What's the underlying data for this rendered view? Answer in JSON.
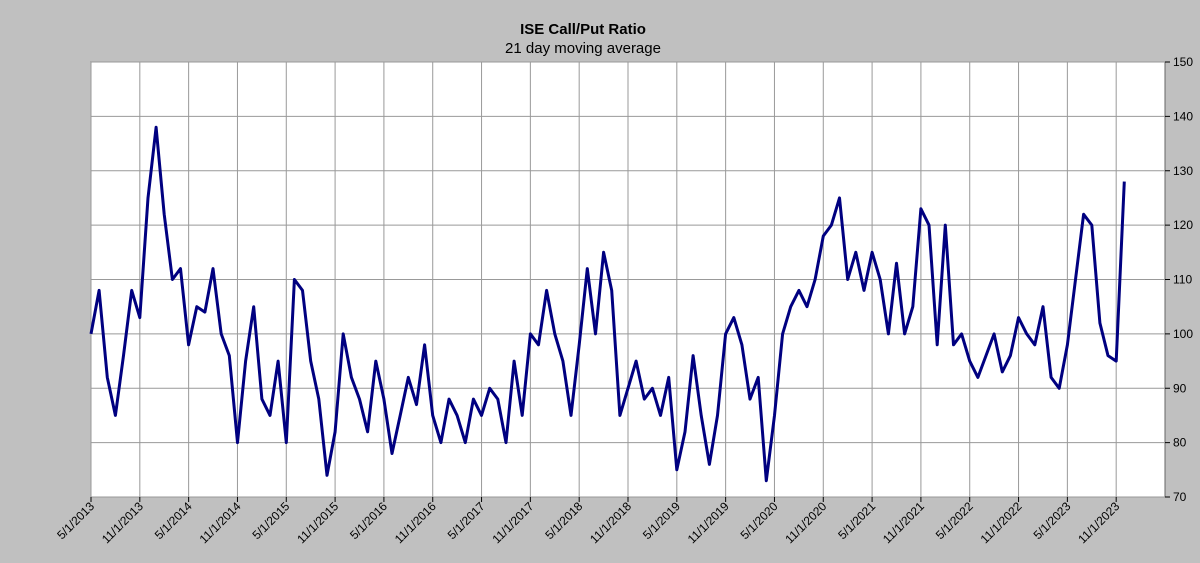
{
  "chart_data": {
    "type": "line",
    "title": "ISE  Call/Put Ratio",
    "subtitle": "21 day moving average",
    "x": [
      "5/1/2013",
      "6/1/2013",
      "7/1/2013",
      "8/1/2013",
      "9/1/2013",
      "10/1/2013",
      "11/1/2013",
      "12/1/2013",
      "1/1/2014",
      "2/1/2014",
      "3/1/2014",
      "4/1/2014",
      "5/1/2014",
      "6/1/2014",
      "7/1/2014",
      "8/1/2014",
      "9/1/2014",
      "10/1/2014",
      "11/1/2014",
      "12/1/2014",
      "1/1/2015",
      "2/1/2015",
      "3/1/2015",
      "4/1/2015",
      "5/1/2015",
      "6/1/2015",
      "7/1/2015",
      "8/1/2015",
      "9/1/2015",
      "10/1/2015",
      "11/1/2015",
      "12/1/2015",
      "1/1/2016",
      "2/1/2016",
      "3/1/2016",
      "4/1/2016",
      "5/1/2016",
      "6/1/2016",
      "7/1/2016",
      "8/1/2016",
      "9/1/2016",
      "10/1/2016",
      "11/1/2016",
      "12/1/2016",
      "1/1/2017",
      "2/1/2017",
      "3/1/2017",
      "4/1/2017",
      "5/1/2017",
      "6/1/2017",
      "7/1/2017",
      "8/1/2017",
      "9/1/2017",
      "10/1/2017",
      "11/1/2017",
      "12/1/2017",
      "1/1/2018",
      "2/1/2018",
      "3/1/2018",
      "4/1/2018",
      "5/1/2018",
      "6/1/2018",
      "7/1/2018",
      "8/1/2018",
      "9/1/2018",
      "10/1/2018",
      "11/1/2018",
      "12/1/2018",
      "1/1/2019",
      "2/1/2019",
      "3/1/2019",
      "4/1/2019",
      "5/1/2019",
      "6/1/2019",
      "7/1/2019",
      "8/1/2019",
      "9/1/2019",
      "10/1/2019",
      "11/1/2019",
      "12/1/2019",
      "1/1/2020",
      "2/1/2020",
      "3/1/2020",
      "4/1/2020",
      "5/1/2020",
      "6/1/2020",
      "7/1/2020",
      "8/1/2020",
      "9/1/2020",
      "10/1/2020",
      "11/1/2020",
      "12/1/2020",
      "1/1/2021",
      "2/1/2021",
      "3/1/2021",
      "4/1/2021",
      "5/1/2021",
      "6/1/2021",
      "7/1/2021",
      "8/1/2021",
      "9/1/2021",
      "10/1/2021",
      "11/1/2021",
      "12/1/2021",
      "1/1/2022",
      "2/1/2022",
      "3/1/2022",
      "4/1/2022",
      "5/1/2022",
      "6/1/2022",
      "7/1/2022",
      "8/1/2022",
      "9/1/2022",
      "10/1/2022",
      "11/1/2022",
      "12/1/2022",
      "1/1/2023",
      "2/1/2023",
      "3/1/2023",
      "4/1/2023",
      "5/1/2023",
      "6/1/2023",
      "7/1/2023",
      "8/1/2023",
      "9/1/2023",
      "10/1/2023",
      "11/1/2023",
      "12/1/2023"
    ],
    "series": [
      {
        "name": "ISE Call/Put Ratio",
        "color": "#000080",
        "values": [
          100,
          108,
          92,
          85,
          96,
          108,
          103,
          125,
          138,
          122,
          110,
          112,
          98,
          105,
          104,
          112,
          100,
          96,
          80,
          95,
          105,
          88,
          85,
          95,
          80,
          110,
          108,
          95,
          88,
          74,
          82,
          100,
          92,
          88,
          82,
          95,
          88,
          78,
          85,
          92,
          87,
          98,
          85,
          80,
          88,
          85,
          80,
          88,
          85,
          90,
          88,
          80,
          95,
          85,
          100,
          98,
          108,
          100,
          95,
          85,
          98,
          112,
          100,
          115,
          108,
          85,
          90,
          95,
          88,
          90,
          85,
          92,
          75,
          82,
          96,
          85,
          76,
          85,
          100,
          103,
          98,
          88,
          92,
          73,
          85,
          100,
          105,
          108,
          105,
          110,
          118,
          120,
          125,
          110,
          115,
          108,
          115,
          110,
          100,
          113,
          100,
          105,
          123,
          120,
          98,
          120,
          98,
          100,
          95,
          92,
          96,
          100,
          93,
          96,
          103,
          100,
          98,
          105,
          92,
          90,
          98,
          110,
          122,
          120,
          102,
          96,
          95,
          128
        ]
      }
    ],
    "xlim": [
      "5/1/2013",
      "5/1/2024"
    ],
    "xticks": [
      "5/1/2013",
      "11/1/2013",
      "5/1/2014",
      "11/1/2014",
      "5/1/2015",
      "11/1/2015",
      "5/1/2016",
      "11/1/2016",
      "5/1/2017",
      "11/1/2017",
      "5/1/2018",
      "11/1/2018",
      "5/1/2019",
      "11/1/2019",
      "5/1/2020",
      "11/1/2020",
      "5/1/2021",
      "11/1/2021",
      "5/1/2022",
      "11/1/2022",
      "5/1/2023",
      "11/1/2023"
    ],
    "ylim": [
      70,
      150
    ],
    "yticks": [
      70,
      80,
      90,
      100,
      110,
      120,
      130,
      140,
      150
    ],
    "grid": true
  }
}
